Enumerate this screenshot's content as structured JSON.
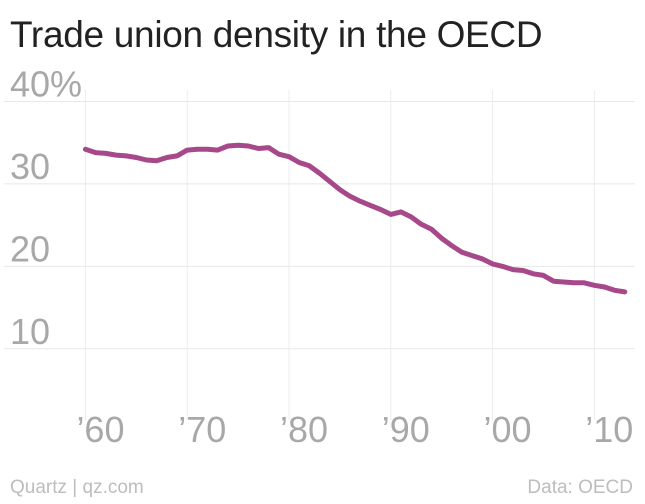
{
  "chart_data": {
    "type": "line",
    "title": "Trade union density in the OECD",
    "xlabel": "",
    "ylabel": "",
    "xlim": [
      1957.5,
      2014
    ],
    "ylim": [
      5,
      42
    ],
    "x_ticks": [
      {
        "value": 1960,
        "label": "’60"
      },
      {
        "value": 1970,
        "label": "’70"
      },
      {
        "value": 1980,
        "label": "’80"
      },
      {
        "value": 1990,
        "label": "’90"
      },
      {
        "value": 2000,
        "label": "’00"
      },
      {
        "value": 2010,
        "label": "’10"
      }
    ],
    "y_ticks": [
      {
        "value": 10,
        "label": "10"
      },
      {
        "value": 20,
        "label": "20"
      },
      {
        "value": 30,
        "label": "30"
      },
      {
        "value": 40,
        "label": "40%"
      }
    ],
    "grid": true,
    "line_color": "#a7488a",
    "series": [
      {
        "x": [
          1960,
          1961,
          1962,
          1963,
          1964,
          1965,
          1966,
          1967,
          1968,
          1969,
          1970,
          1971,
          1972,
          1973,
          1974,
          1975,
          1976,
          1977,
          1978,
          1979,
          1980,
          1981,
          1982,
          1983,
          1984,
          1985,
          1986,
          1987,
          1988,
          1989,
          1990,
          1991,
          1992,
          1993,
          1994,
          1995,
          1996,
          1997,
          1998,
          1999,
          2000,
          2001,
          2002,
          2003,
          2004,
          2005,
          2006,
          2007,
          2008,
          2009,
          2010,
          2011,
          2012,
          2013
        ],
        "values": [
          34.2,
          33.8,
          33.7,
          33.5,
          33.4,
          33.2,
          32.9,
          32.8,
          33.2,
          33.4,
          34.1,
          34.2,
          34.2,
          34.1,
          34.6,
          34.7,
          34.6,
          34.3,
          34.4,
          33.6,
          33.3,
          32.6,
          32.2,
          31.3,
          30.3,
          29.3,
          28.5,
          27.9,
          27.4,
          26.9,
          26.3,
          26.6,
          26.0,
          25.1,
          24.5,
          23.4,
          22.5,
          21.7,
          21.3,
          20.9,
          20.3,
          20.0,
          19.6,
          19.5,
          19.1,
          18.9,
          18.2,
          18.1,
          18.0,
          18.0,
          17.7,
          17.5,
          17.1,
          16.9
        ]
      }
    ]
  },
  "footer": {
    "source_left": "Quartz | qz.com",
    "source_right": "Data: OECD"
  }
}
